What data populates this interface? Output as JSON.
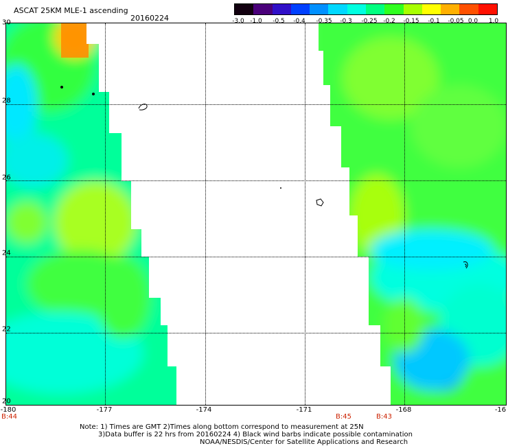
{
  "header": {
    "title": "ASCAT 25KM MLE-1 ascending",
    "date": "20160224"
  },
  "colorbar": {
    "labels": [
      "-3.0",
      "-1.0",
      "-0.5",
      "-0.4",
      "-0.35",
      "-0.3",
      "-0.25",
      "-0.2",
      "-0.15",
      "-0.1",
      "-0.05",
      "0.0",
      "1.0"
    ],
    "colors": [
      "#120010",
      "#4a007a",
      "#3010c8",
      "#0040ff",
      "#0090ff",
      "#00d8ff",
      "#00ffe0",
      "#00ff80",
      "#30ff20",
      "#a8ff00",
      "#ffff00",
      "#ffb000",
      "#ff5000",
      "#ff1000"
    ]
  },
  "map": {
    "lat_labels": [
      "30",
      "28",
      "26",
      "24",
      "22",
      "20"
    ],
    "lon_labels": [
      "-180",
      "-177",
      "-174",
      "-171",
      "-168",
      "-16"
    ],
    "time_labels": [
      "B:44",
      "B:45",
      "B:43"
    ],
    "lon_range": [
      -180,
      -165
    ],
    "lat_range": [
      20,
      30
    ]
  },
  "notes": {
    "line1": "Note: 1) Times are GMT 2)Times along bottom correspond to measurement at 25N",
    "line2": "3)Data buffer is 22 hrs from 20160224 4) Black wind barbs indicate possible contamination",
    "line3": "NOAA/NESDIS/Center for Satellite Applications and Research"
  }
}
